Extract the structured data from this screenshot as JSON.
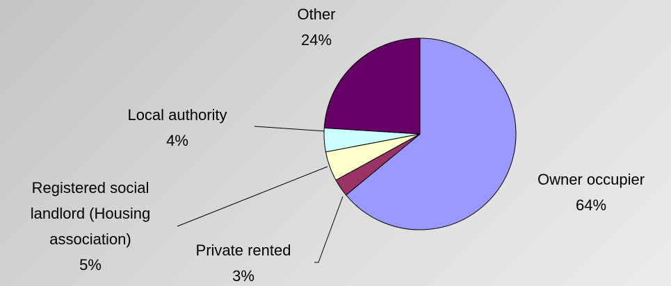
{
  "chart_data": {
    "type": "pie",
    "categories": [
      "Owner occupier",
      "Private rented",
      "Registered social\nlandlord (Housing\nassociation)",
      "Local authority",
      "Other"
    ],
    "values": [
      64,
      3,
      5,
      4,
      24
    ],
    "value_labels": [
      "64%",
      "3%",
      "5%",
      "4%",
      "24%"
    ],
    "colors": [
      "#9999ff",
      "#993366",
      "#ffffcc",
      "#ccffff",
      "#660066"
    ]
  }
}
